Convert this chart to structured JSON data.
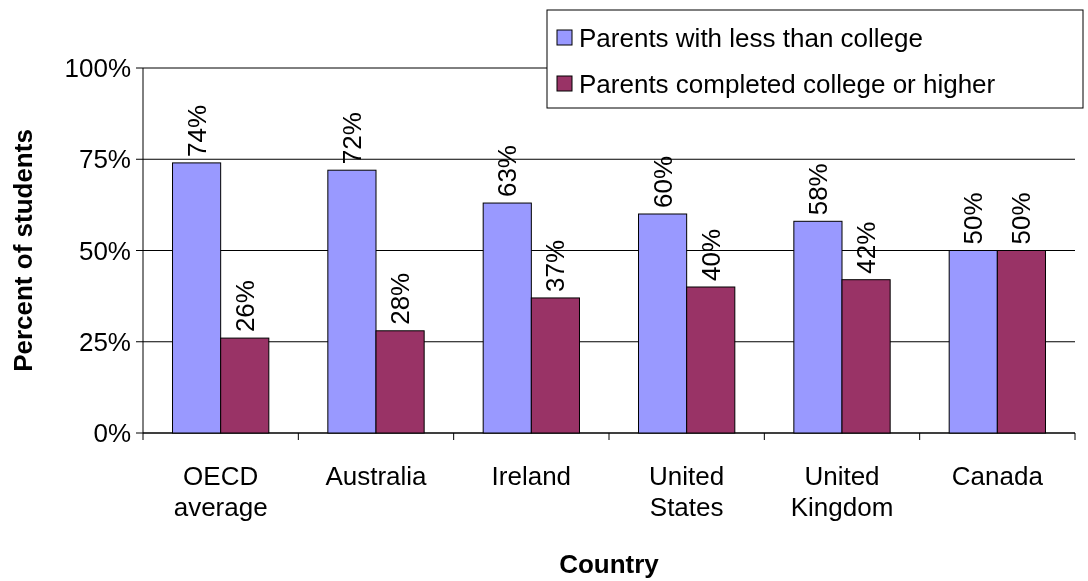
{
  "chart_data": {
    "type": "bar",
    "xlabel": "Country",
    "ylabel": "Percent of students",
    "categories": [
      "OECD average",
      "Australia",
      "Ireland",
      "United States",
      "United Kingdom",
      "Canada"
    ],
    "series": [
      {
        "name": "Parents with less than college",
        "color": "#9999ff",
        "values": [
          74,
          72,
          63,
          60,
          58,
          50
        ],
        "value_labels": [
          "74%",
          "72%",
          "63%",
          "60%",
          "58%",
          "50%"
        ]
      },
      {
        "name": "Parents completed college or higher",
        "color": "#993366",
        "values": [
          26,
          28,
          37,
          40,
          42,
          50
        ],
        "value_labels": [
          "26%",
          "28%",
          "37%",
          "40%",
          "42%",
          "50%"
        ]
      }
    ],
    "ylim": [
      0,
      100
    ],
    "yticks": [
      {
        "value": 0,
        "label": "0%"
      },
      {
        "value": 25,
        "label": "25%"
      },
      {
        "value": 50,
        "label": "50%"
      },
      {
        "value": 75,
        "label": "75%"
      },
      {
        "value": 100,
        "label": "100%"
      }
    ],
    "grid": "y",
    "legend": "top right"
  }
}
